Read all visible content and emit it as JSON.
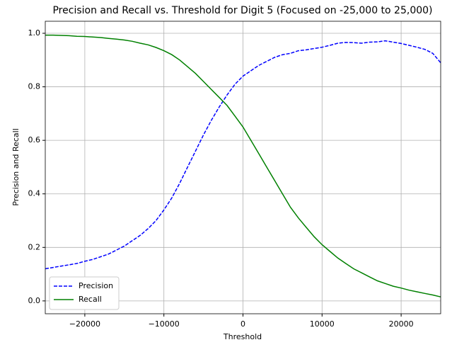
{
  "chart_data": {
    "type": "line",
    "title": "Precision and Recall vs. Threshold for Digit 5 (Focused on -25,000 to 25,000)",
    "x_label": "Threshold",
    "y_label": "Precision and Recall",
    "x": [
      -25000,
      -24000,
      -23000,
      -22000,
      -21000,
      -20000,
      -19000,
      -18000,
      -17000,
      -16000,
      -15000,
      -14000,
      -13000,
      -12000,
      -11000,
      -10000,
      -9000,
      -8000,
      -7000,
      -6000,
      -5000,
      -4000,
      -3000,
      -2000,
      -1000,
      0,
      1000,
      2000,
      3000,
      4000,
      5000,
      6000,
      7000,
      8000,
      9000,
      10000,
      11000,
      12000,
      13000,
      14000,
      15000,
      16000,
      17000,
      18000,
      19000,
      20000,
      21000,
      22000,
      23000,
      24000,
      25000
    ],
    "series": [
      {
        "name": "Precision",
        "color": "#0000ff",
        "linestyle": "dashed",
        "values": [
          0.12,
          0.125,
          0.13,
          0.135,
          0.14,
          0.148,
          0.155,
          0.165,
          0.175,
          0.19,
          0.205,
          0.225,
          0.245,
          0.27,
          0.3,
          0.34,
          0.385,
          0.44,
          0.5,
          0.56,
          0.62,
          0.675,
          0.725,
          0.77,
          0.81,
          0.84,
          0.86,
          0.88,
          0.895,
          0.91,
          0.92,
          0.925,
          0.935,
          0.938,
          0.943,
          0.948,
          0.955,
          0.963,
          0.966,
          0.965,
          0.963,
          0.967,
          0.968,
          0.972,
          0.967,
          0.962,
          0.955,
          0.948,
          0.94,
          0.925,
          0.89
        ]
      },
      {
        "name": "Recall",
        "color": "#008000",
        "linestyle": "solid",
        "values": [
          0.993,
          0.993,
          0.992,
          0.991,
          0.989,
          0.988,
          0.986,
          0.984,
          0.981,
          0.978,
          0.975,
          0.97,
          0.963,
          0.957,
          0.947,
          0.935,
          0.92,
          0.9,
          0.875,
          0.85,
          0.82,
          0.79,
          0.76,
          0.73,
          0.69,
          0.65,
          0.6,
          0.55,
          0.5,
          0.45,
          0.4,
          0.35,
          0.31,
          0.275,
          0.24,
          0.21,
          0.185,
          0.16,
          0.14,
          0.12,
          0.105,
          0.09,
          0.075,
          0.065,
          0.055,
          0.048,
          0.04,
          0.034,
          0.028,
          0.022,
          0.015
        ]
      }
    ],
    "xlim": [
      -25000,
      25000
    ],
    "xticks": [
      {
        "value": -20000,
        "label": "−20000"
      },
      {
        "value": -10000,
        "label": "−10000"
      },
      0,
      10000,
      20000
    ],
    "ylim": [
      -0.048,
      1.045
    ],
    "yticks": [
      {
        "value": 0,
        "label": "0.0"
      },
      0.2,
      0.4,
      0.6,
      0.8,
      {
        "value": 1,
        "label": "1.0"
      }
    ],
    "grid": true,
    "legend": "lower left"
  }
}
